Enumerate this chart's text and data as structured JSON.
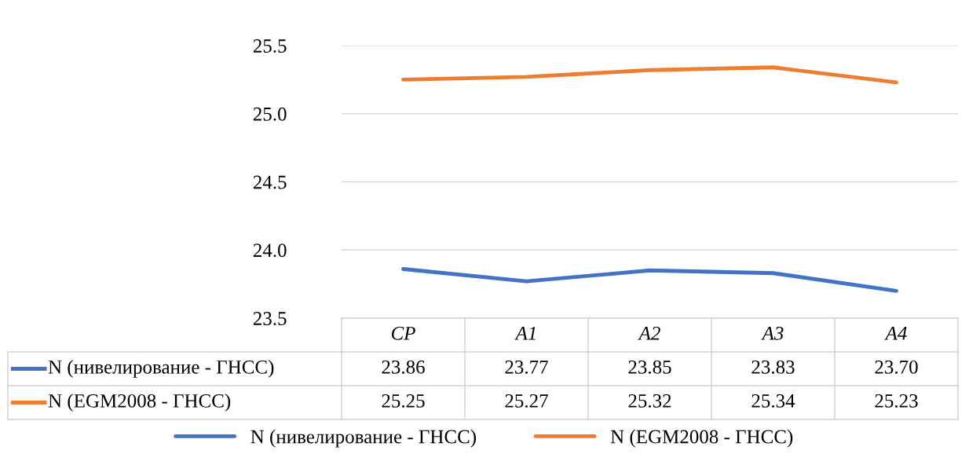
{
  "chart_data": {
    "type": "line",
    "categories": [
      "CP",
      "A1",
      "A2",
      "A3",
      "A4"
    ],
    "series": [
      {
        "name": "N (нивелирование - ГНСС)",
        "color": "#4472c4",
        "values": [
          23.86,
          23.77,
          23.85,
          23.83,
          23.7
        ],
        "value_labels": [
          "23.86",
          "23.77",
          "23.85",
          "23.83",
          "23.70"
        ]
      },
      {
        "name": "N (EGM2008 - ГНСС)",
        "color": "#ed7d31",
        "values": [
          25.25,
          25.27,
          25.32,
          25.34,
          25.23
        ],
        "value_labels": [
          "25.25",
          "25.27",
          "25.32",
          "25.34",
          "25.23"
        ]
      }
    ],
    "ylim": [
      23.5,
      25.5
    ],
    "yticks": [
      23.5,
      {
        "value": 24,
        "label": "24.0"
      },
      24.5,
      {
        "value": 25,
        "label": "25.0"
      },
      25.5
    ],
    "grid": "y",
    "legend": "bottom",
    "marker": "none",
    "line_style": "solid"
  }
}
